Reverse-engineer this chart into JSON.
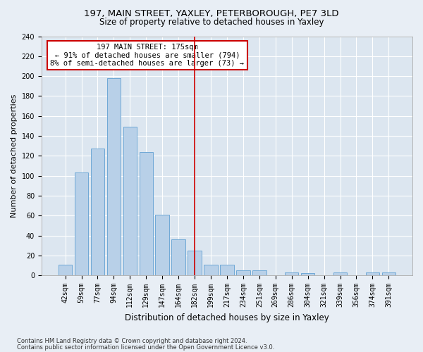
{
  "title": "197, MAIN STREET, YAXLEY, PETERBOROUGH, PE7 3LD",
  "subtitle": "Size of property relative to detached houses in Yaxley",
  "xlabel": "Distribution of detached houses by size in Yaxley",
  "ylabel": "Number of detached properties",
  "categories": [
    "42sqm",
    "59sqm",
    "77sqm",
    "94sqm",
    "112sqm",
    "129sqm",
    "147sqm",
    "164sqm",
    "182sqm",
    "199sqm",
    "217sqm",
    "234sqm",
    "251sqm",
    "269sqm",
    "286sqm",
    "304sqm",
    "321sqm",
    "339sqm",
    "356sqm",
    "374sqm",
    "391sqm"
  ],
  "values": [
    11,
    103,
    127,
    198,
    149,
    124,
    61,
    36,
    25,
    11,
    11,
    5,
    5,
    0,
    3,
    2,
    0,
    3,
    0,
    3,
    3
  ],
  "bar_color": "#b8d0e8",
  "bar_edgecolor": "#6fa8d6",
  "vline_x": 8,
  "vline_color": "#cc0000",
  "annotation_line1": "197 MAIN STREET: 175sqm",
  "annotation_line2": "← 91% of detached houses are smaller (794)",
  "annotation_line3": "8% of semi-detached houses are larger (73) →",
  "annotation_box_edgecolor": "#cc0000",
  "annotation_box_facecolor": "#ffffff",
  "footer1": "Contains HM Land Registry data © Crown copyright and database right 2024.",
  "footer2": "Contains public sector information licensed under the Open Government Licence v3.0.",
  "background_color": "#e8eef5",
  "plot_background_color": "#dce6f0",
  "ylim": [
    0,
    240
  ],
  "yticks": [
    0,
    20,
    40,
    60,
    80,
    100,
    120,
    140,
    160,
    180,
    200,
    220,
    240
  ],
  "title_fontsize": 9.5,
  "subtitle_fontsize": 8.5,
  "ylabel_fontsize": 8,
  "xlabel_fontsize": 8.5,
  "tick_fontsize": 7,
  "annot_fontsize": 7.5,
  "footer_fontsize": 6
}
